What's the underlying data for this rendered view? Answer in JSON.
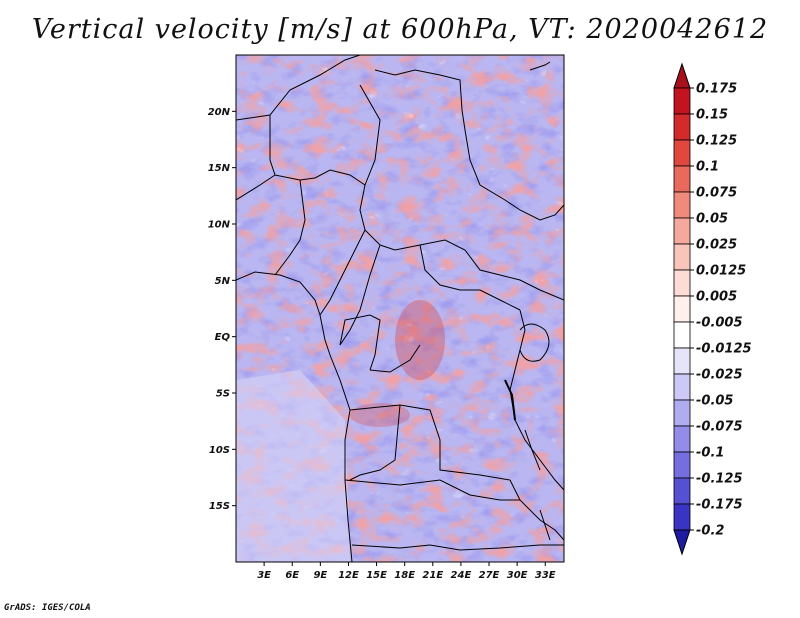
{
  "title": "Vertical velocity [m/s] at 600hPa, VT: 2020042612",
  "credit": "GrADS: IGES/COLA",
  "map": {
    "lon_range": [
      0,
      35
    ],
    "lat_range": [
      -20,
      25
    ],
    "lat_ticks": [
      {
        "value": 20,
        "label": "20N"
      },
      {
        "value": 15,
        "label": "15N"
      },
      {
        "value": 10,
        "label": "10N"
      },
      {
        "value": 5,
        "label": "5N"
      },
      {
        "value": 0,
        "label": "EQ"
      },
      {
        "value": -5,
        "label": "5S"
      },
      {
        "value": -10,
        "label": "10S"
      },
      {
        "value": -15,
        "label": "15S"
      }
    ],
    "lon_ticks": [
      {
        "value": 3,
        "label": "3E"
      },
      {
        "value": 6,
        "label": "6E"
      },
      {
        "value": 9,
        "label": "9E"
      },
      {
        "value": 12,
        "label": "12E"
      },
      {
        "value": 15,
        "label": "15E"
      },
      {
        "value": 18,
        "label": "18E"
      },
      {
        "value": 21,
        "label": "21E"
      },
      {
        "value": 24,
        "label": "24E"
      },
      {
        "value": 27,
        "label": "27E"
      },
      {
        "value": 30,
        "label": "30E"
      },
      {
        "value": 33,
        "label": "33E"
      }
    ]
  },
  "colorbar": {
    "levels": [
      {
        "label": "0.175",
        "color": "#c1141e"
      },
      {
        "label": "0.15",
        "color": "#d32a2b"
      },
      {
        "label": "0.125",
        "color": "#e0473f"
      },
      {
        "label": "0.1",
        "color": "#e96a5c"
      },
      {
        "label": "0.075",
        "color": "#f08b7c"
      },
      {
        "label": "0.05",
        "color": "#f5a99c"
      },
      {
        "label": "0.025",
        "color": "#f9c4ba"
      },
      {
        "label": "0.0125",
        "color": "#fcdcd5"
      },
      {
        "label": "0.005",
        "color": "#fff0ec"
      },
      {
        "label": "-0.005",
        "color": "#ffffff"
      },
      {
        "label": "-0.0125",
        "color": "#e6e4fb"
      },
      {
        "label": "-0.025",
        "color": "#ccc9f6"
      },
      {
        "label": "-0.05",
        "color": "#b0acf0"
      },
      {
        "label": "-0.075",
        "color": "#938de8"
      },
      {
        "label": "-0.1",
        "color": "#756ede"
      },
      {
        "label": "-0.125",
        "color": "#5650d2"
      },
      {
        "label": "-0.175",
        "color": "#3a34c2"
      },
      {
        "label": "-0.2",
        "color": "#2720ae"
      }
    ],
    "top_color": "#a8101c",
    "bottom_color": "#1e1aa2"
  }
}
